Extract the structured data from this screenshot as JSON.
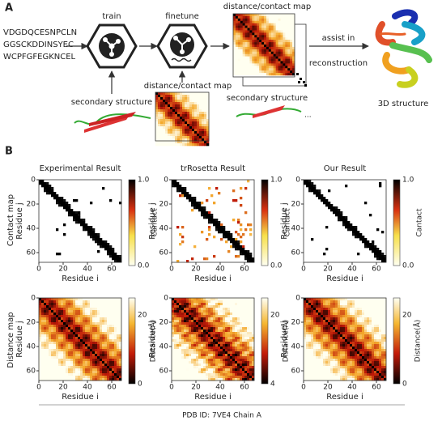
{
  "panel_a": {
    "label": "A",
    "sequence": [
      "VDGDQCESNPCLN",
      "GGSCKDDINSYEC",
      "WCPFGFEGKNCEL"
    ],
    "train": "train",
    "finetune": "finetune",
    "input_secondary_structure": "secondary structure",
    "input_map": "distance/contact  map",
    "output_map": "distance/contact  map",
    "output_secondary_structure": "secondary structure",
    "assist": [
      "assist in",
      "reconstruction"
    ],
    "structure_3d": "3D structure"
  },
  "panel_b": {
    "label": "B",
    "row_labels": [
      "Contact map",
      "Distance map"
    ],
    "columns": [
      {
        "title": "Experimental Result",
        "distance_ticks": [
          "0",
          "20"
        ]
      },
      {
        "title": "trRosetta Result",
        "distance_ticks": [
          "4",
          "20"
        ]
      },
      {
        "title": "Our Result",
        "distance_ticks": [
          "0",
          "20"
        ]
      }
    ],
    "axis_ticks": [
      "0",
      "20",
      "40",
      "60"
    ],
    "x_label": "Residue i",
    "y_label": "Residue j",
    "contact_colorbar": {
      "label": "Cantact",
      "ticks": [
        "0.0",
        "1.0"
      ]
    },
    "distance_colorbar": {
      "label": "Distance(Å)"
    },
    "footer": "PDB ID: 7VE4  Chain A"
  }
}
